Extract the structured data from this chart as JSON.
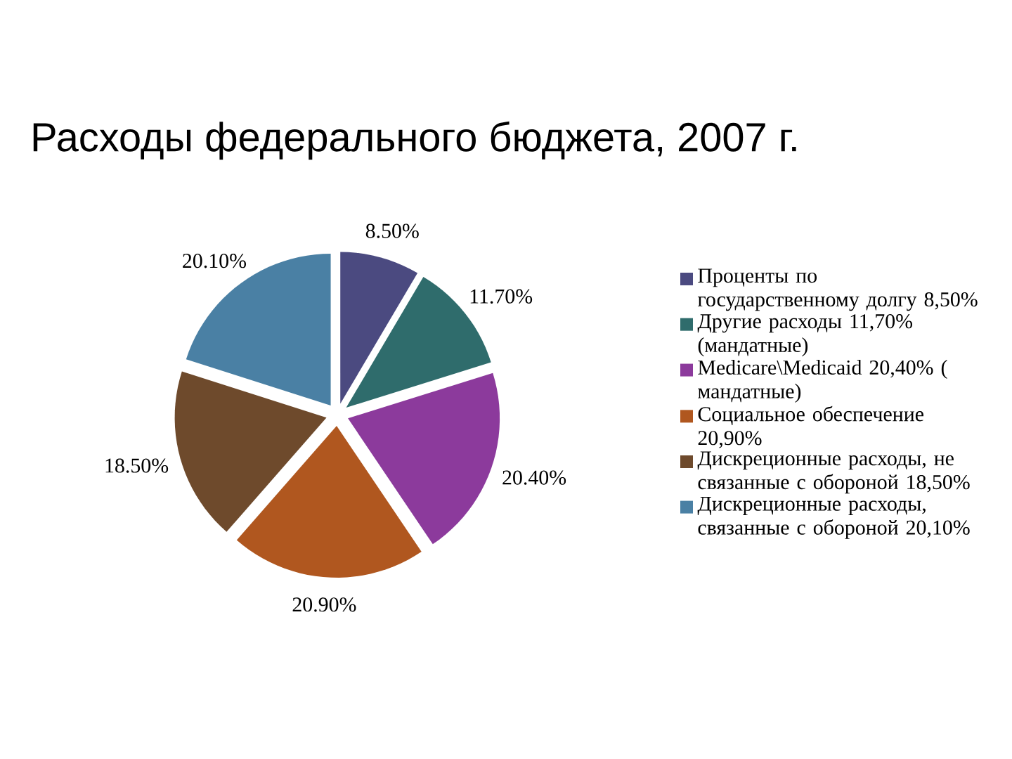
{
  "chart_data": {
    "type": "pie",
    "title": "Расходы федерального бюджета, 2007 г.",
    "categories": [
      "Проценты по государственному долгу 8,50%",
      "Другие расходы 11,70% (мандатные)",
      "Medicare\\Medicaid 20,40% ( мандатные)",
      "Социальное обеспечение 20,90%",
      "Дискреционные расходы, не связанные с обороной 18,50%",
      "Дискреционные расходы, связанные с обороной 20,10%"
    ],
    "values": [
      8.5,
      11.7,
      20.4,
      20.9,
      18.5,
      20.1
    ],
    "value_labels": [
      "8.50%",
      "11.70%",
      "20.40%",
      "20.90%",
      "18.50%",
      "20.10%"
    ],
    "colors": [
      "#4b4a80",
      "#2f6c6c",
      "#8c3a9c",
      "#b0571f",
      "#6e4a2c",
      "#4a80a4"
    ],
    "legend": "right"
  }
}
